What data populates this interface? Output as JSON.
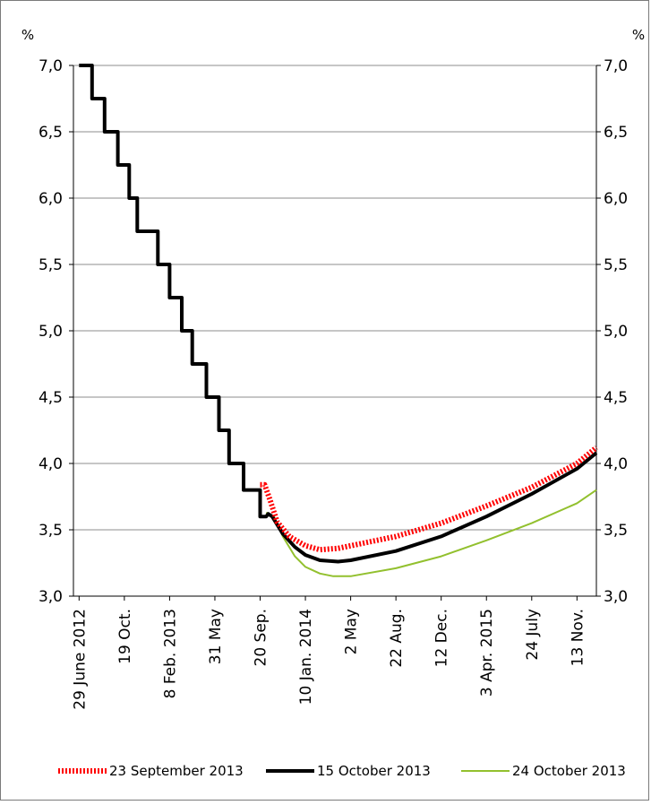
{
  "chart_data": {
    "type": "line",
    "y_unit_left": "%",
    "y_unit_right": "%",
    "ylim": [
      3.0,
      7.0
    ],
    "yticks": [
      "3,0",
      "3,5",
      "4,0",
      "4,5",
      "5,0",
      "5,5",
      "6,0",
      "6,5",
      "7,0"
    ],
    "grid": true,
    "legend_position": "bottom",
    "xrange": [
      "2012-06-15",
      "2015-12-31"
    ],
    "categories": [
      {
        "label": "29 June 2012",
        "date": "2012-06-29"
      },
      {
        "label": "19 Oct.",
        "date": "2012-10-19"
      },
      {
        "label": "8 Feb. 2013",
        "date": "2013-02-08"
      },
      {
        "label": "31 May",
        "date": "2013-05-31"
      },
      {
        "label": "20 Sep.",
        "date": "2013-09-20"
      },
      {
        "label": "10 Jan. 2014",
        "date": "2014-01-10"
      },
      {
        "label": "2 May",
        "date": "2014-05-02"
      },
      {
        "label": "22 Aug.",
        "date": "2014-08-22"
      },
      {
        "label": "12 Dec.",
        "date": "2014-12-12"
      },
      {
        "label": "3 Apr. 2015",
        "date": "2015-04-03"
      },
      {
        "label": "24 July",
        "date": "2015-07-24"
      },
      {
        "label": "13 Nov.",
        "date": "2015-11-13"
      }
    ],
    "series": [
      {
        "name": "23 September 2013",
        "color": "#ff0000",
        "style": "dotted-thick",
        "points": [
          [
            "2013-09-20",
            3.84
          ],
          [
            "2013-10-01",
            3.84
          ],
          [
            "2013-10-15",
            3.72
          ],
          [
            "2013-11-01",
            3.56
          ],
          [
            "2013-12-01",
            3.45
          ],
          [
            "2014-01-10",
            3.38
          ],
          [
            "2014-02-15",
            3.35
          ],
          [
            "2014-04-01",
            3.36
          ],
          [
            "2014-05-02",
            3.38
          ],
          [
            "2014-08-22",
            3.45
          ],
          [
            "2014-12-12",
            3.55
          ],
          [
            "2015-04-03",
            3.68
          ],
          [
            "2015-07-24",
            3.82
          ],
          [
            "2015-11-13",
            4.0
          ],
          [
            "2015-12-31",
            4.12
          ]
        ]
      },
      {
        "name": "15 October 2013",
        "color": "#000000",
        "style": "thick",
        "points": [
          [
            "2012-06-29",
            7.0
          ],
          [
            "2012-07-31",
            7.0
          ],
          [
            "2012-07-31",
            6.75
          ],
          [
            "2012-08-31",
            6.75
          ],
          [
            "2012-08-31",
            6.5
          ],
          [
            "2012-10-03",
            6.5
          ],
          [
            "2012-10-03",
            6.25
          ],
          [
            "2012-10-31",
            6.25
          ],
          [
            "2012-10-31",
            6.0
          ],
          [
            "2012-11-20",
            6.0
          ],
          [
            "2012-11-20",
            5.75
          ],
          [
            "2013-01-10",
            5.75
          ],
          [
            "2013-01-10",
            5.5
          ],
          [
            "2013-02-08",
            5.5
          ],
          [
            "2013-02-08",
            5.25
          ],
          [
            "2013-03-10",
            5.25
          ],
          [
            "2013-03-10",
            5.0
          ],
          [
            "2013-04-05",
            5.0
          ],
          [
            "2013-04-05",
            4.75
          ],
          [
            "2013-05-10",
            4.75
          ],
          [
            "2013-05-10",
            4.5
          ],
          [
            "2013-06-10",
            4.5
          ],
          [
            "2013-06-10",
            4.25
          ],
          [
            "2013-07-05",
            4.25
          ],
          [
            "2013-07-05",
            4.0
          ],
          [
            "2013-08-10",
            4.0
          ],
          [
            "2013-08-10",
            3.8
          ],
          [
            "2013-09-20",
            3.8
          ],
          [
            "2013-09-20",
            3.6
          ],
          [
            "2013-10-05",
            3.6
          ],
          [
            "2013-10-10",
            3.62
          ],
          [
            "2013-10-20",
            3.6
          ],
          [
            "2013-11-15",
            3.47
          ],
          [
            "2013-12-15",
            3.37
          ],
          [
            "2014-01-10",
            3.31
          ],
          [
            "2014-02-15",
            3.27
          ],
          [
            "2014-04-01",
            3.26
          ],
          [
            "2014-05-02",
            3.27
          ],
          [
            "2014-08-22",
            3.34
          ],
          [
            "2014-12-12",
            3.45
          ],
          [
            "2015-04-03",
            3.6
          ],
          [
            "2015-07-24",
            3.77
          ],
          [
            "2015-11-13",
            3.96
          ],
          [
            "2015-12-31",
            4.08
          ]
        ]
      },
      {
        "name": "24 October 2013",
        "color": "#92c02e",
        "style": "thin",
        "points": [
          [
            "2013-10-05",
            3.63
          ],
          [
            "2013-10-24",
            3.6
          ],
          [
            "2013-11-15",
            3.45
          ],
          [
            "2013-12-15",
            3.3
          ],
          [
            "2014-01-10",
            3.22
          ],
          [
            "2014-02-15",
            3.17
          ],
          [
            "2014-03-20",
            3.15
          ],
          [
            "2014-05-02",
            3.15
          ],
          [
            "2014-08-22",
            3.21
          ],
          [
            "2014-12-12",
            3.3
          ],
          [
            "2015-04-03",
            3.42
          ],
          [
            "2015-07-24",
            3.55
          ],
          [
            "2015-11-13",
            3.7
          ],
          [
            "2015-12-31",
            3.8
          ]
        ]
      }
    ]
  }
}
